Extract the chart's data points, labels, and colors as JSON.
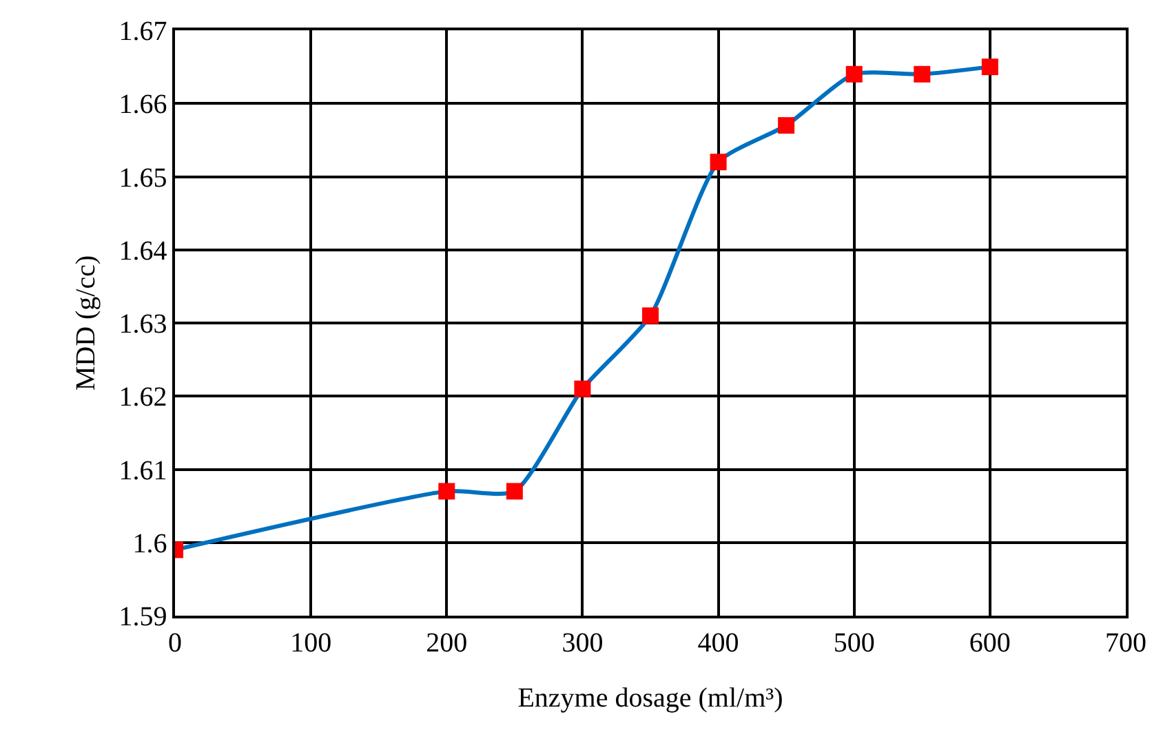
{
  "chart_data": {
    "type": "line",
    "xlabel": "Enzyme dosage (ml/m³)",
    "ylabel": "MDD (g/cc)",
    "x": [
      0,
      200,
      250,
      300,
      350,
      400,
      450,
      500,
      550,
      600
    ],
    "series": [
      {
        "color": "#0070c0",
        "colors": [
          "#ff0000",
          "#ff0000",
          "#ff0000",
          "#ff0000",
          "#ff0000",
          "#ff0000",
          "#ff0000",
          "#ff0000",
          "#ff0000",
          "#ff0000"
        ],
        "values": [
          1.599,
          1.607,
          1.607,
          1.621,
          1.631,
          1.652,
          1.657,
          1.664,
          1.664,
          1.665
        ]
      }
    ],
    "xlim": [
      0,
      700
    ],
    "xticks": [
      0,
      100,
      200,
      300,
      400,
      500,
      600,
      700
    ],
    "ylim": [
      1.59,
      1.67
    ],
    "yticks": [
      1.59,
      1.6,
      1.61,
      1.62,
      1.63,
      1.64,
      1.65,
      1.66,
      1.67
    ],
    "grid": true,
    "marker": "square",
    "line_style": "solid"
  }
}
